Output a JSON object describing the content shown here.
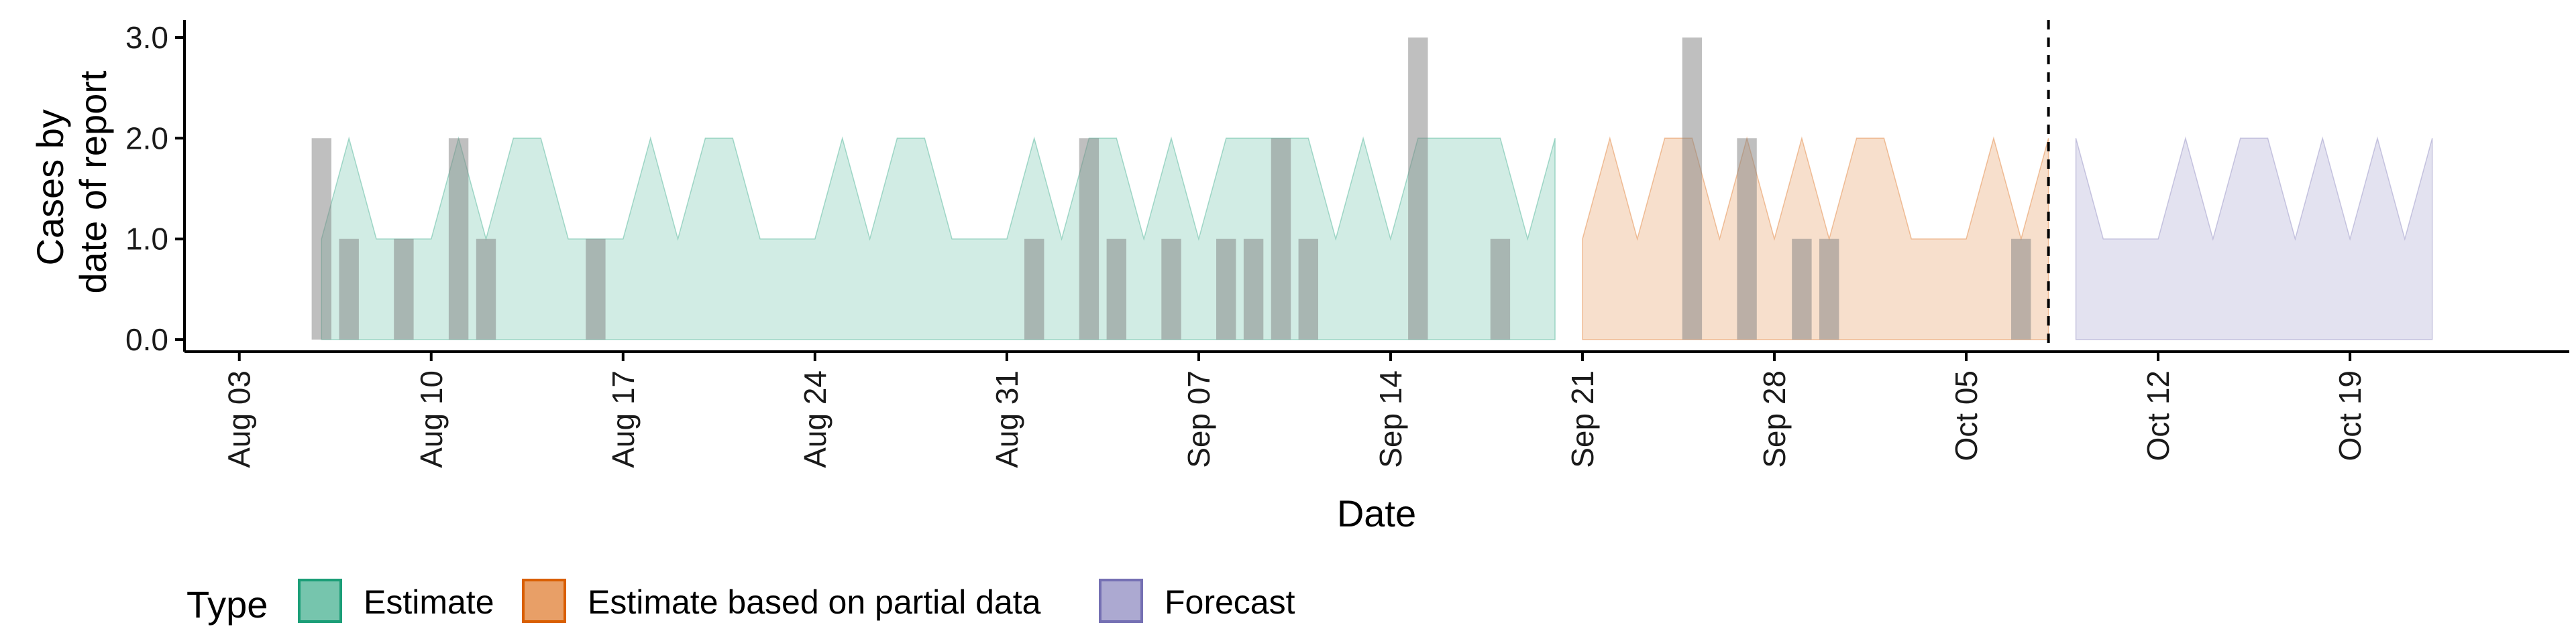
{
  "chart_data": {
    "type": "area",
    "xlabel": "Date",
    "ylabel_lines": [
      "Cases by",
      "date of report"
    ],
    "ylim": [
      0,
      3.2
    ],
    "x_range": [
      "2023-08-01",
      "2023-10-27"
    ],
    "y_ticks": [
      {
        "value": 0,
        "label": "0.0"
      },
      {
        "value": 1,
        "label": "1.0"
      },
      {
        "value": 2,
        "label": "2.0"
      },
      {
        "value": 3,
        "label": "3.0"
      }
    ],
    "x_ticks": [
      {
        "date": "2023-08-03",
        "label": "Aug 03"
      },
      {
        "date": "2023-08-10",
        "label": "Aug 10"
      },
      {
        "date": "2023-08-17",
        "label": "Aug 17"
      },
      {
        "date": "2023-08-24",
        "label": "Aug 24"
      },
      {
        "date": "2023-08-31",
        "label": "Aug 31"
      },
      {
        "date": "2023-09-07",
        "label": "Sep 07"
      },
      {
        "date": "2023-09-14",
        "label": "Sep 14"
      },
      {
        "date": "2023-09-21",
        "label": "Sep 21"
      },
      {
        "date": "2023-09-28",
        "label": "Sep 28"
      },
      {
        "date": "2023-10-05",
        "label": "Oct 05"
      },
      {
        "date": "2023-10-12",
        "label": "Oct 12"
      },
      {
        "date": "2023-10-19",
        "label": "Oct 19"
      }
    ],
    "forecast_start": "2023-10-08",
    "reported_cases": [
      {
        "date": "2023-08-06",
        "value": 2
      },
      {
        "date": "2023-08-07",
        "value": 1
      },
      {
        "date": "2023-08-09",
        "value": 1
      },
      {
        "date": "2023-08-11",
        "value": 2
      },
      {
        "date": "2023-08-12",
        "value": 1
      },
      {
        "date": "2023-08-16",
        "value": 1
      },
      {
        "date": "2023-09-01",
        "value": 1
      },
      {
        "date": "2023-09-03",
        "value": 2
      },
      {
        "date": "2023-09-04",
        "value": 1
      },
      {
        "date": "2023-09-06",
        "value": 1
      },
      {
        "date": "2023-09-08",
        "value": 1
      },
      {
        "date": "2023-09-09",
        "value": 1
      },
      {
        "date": "2023-09-10",
        "value": 2
      },
      {
        "date": "2023-09-11",
        "value": 1
      },
      {
        "date": "2023-09-15",
        "value": 3
      },
      {
        "date": "2023-09-18",
        "value": 1
      },
      {
        "date": "2023-09-25",
        "value": 3
      },
      {
        "date": "2023-09-27",
        "value": 2
      },
      {
        "date": "2023-09-29",
        "value": 1
      },
      {
        "date": "2023-09-30",
        "value": 1
      },
      {
        "date": "2023-10-07",
        "value": 1
      }
    ],
    "series": [
      {
        "name": "Estimate",
        "color": "#1b9e77",
        "lower": [
          [
            "2023-08-06",
            0
          ],
          [
            "2023-09-20",
            0
          ]
        ],
        "upper": [
          [
            "2023-08-06",
            1
          ],
          [
            "2023-08-07",
            2
          ],
          [
            "2023-08-08",
            1
          ],
          [
            "2023-08-09",
            1
          ],
          [
            "2023-08-10",
            1
          ],
          [
            "2023-08-11",
            2
          ],
          [
            "2023-08-12",
            1
          ],
          [
            "2023-08-13",
            2
          ],
          [
            "2023-08-14",
            2
          ],
          [
            "2023-08-15",
            1
          ],
          [
            "2023-08-16",
            1
          ],
          [
            "2023-08-17",
            1
          ],
          [
            "2023-08-18",
            2
          ],
          [
            "2023-08-19",
            1
          ],
          [
            "2023-08-20",
            2
          ],
          [
            "2023-08-21",
            2
          ],
          [
            "2023-08-22",
            1
          ],
          [
            "2023-08-23",
            1
          ],
          [
            "2023-08-24",
            1
          ],
          [
            "2023-08-25",
            2
          ],
          [
            "2023-08-26",
            1
          ],
          [
            "2023-08-27",
            2
          ],
          [
            "2023-08-28",
            2
          ],
          [
            "2023-08-29",
            1
          ],
          [
            "2023-08-30",
            1
          ],
          [
            "2023-08-31",
            1
          ],
          [
            "2023-09-01",
            2
          ],
          [
            "2023-09-02",
            1
          ],
          [
            "2023-09-03",
            2
          ],
          [
            "2023-09-04",
            2
          ],
          [
            "2023-09-05",
            1
          ],
          [
            "2023-09-06",
            2
          ],
          [
            "2023-09-07",
            1
          ],
          [
            "2023-09-08",
            2
          ],
          [
            "2023-09-09",
            2
          ],
          [
            "2023-09-10",
            2
          ],
          [
            "2023-09-11",
            2
          ],
          [
            "2023-09-12",
            1
          ],
          [
            "2023-09-13",
            2
          ],
          [
            "2023-09-14",
            1
          ],
          [
            "2023-09-15",
            2
          ],
          [
            "2023-09-16",
            2
          ],
          [
            "2023-09-17",
            2
          ],
          [
            "2023-09-18",
            2
          ],
          [
            "2023-09-19",
            1
          ],
          [
            "2023-09-20",
            2
          ]
        ]
      },
      {
        "name": "Estimate based on partial data",
        "color": "#d95f02",
        "lower": [
          [
            "2023-09-21",
            0
          ],
          [
            "2023-10-08",
            0
          ]
        ],
        "upper": [
          [
            "2023-09-21",
            1
          ],
          [
            "2023-09-22",
            2
          ],
          [
            "2023-09-23",
            1
          ],
          [
            "2023-09-24",
            2
          ],
          [
            "2023-09-25",
            2
          ],
          [
            "2023-09-26",
            1
          ],
          [
            "2023-09-27",
            2
          ],
          [
            "2023-09-28",
            1
          ],
          [
            "2023-09-29",
            2
          ],
          [
            "2023-09-30",
            1
          ],
          [
            "2023-10-01",
            2
          ],
          [
            "2023-10-02",
            2
          ],
          [
            "2023-10-03",
            1
          ],
          [
            "2023-10-04",
            1
          ],
          [
            "2023-10-05",
            1
          ],
          [
            "2023-10-06",
            2
          ],
          [
            "2023-10-07",
            1
          ],
          [
            "2023-10-08",
            2
          ]
        ]
      },
      {
        "name": "Forecast",
        "color": "#7570b3",
        "lower": [
          [
            "2023-10-09",
            0
          ],
          [
            "2023-10-22",
            0
          ]
        ],
        "upper": [
          [
            "2023-10-09",
            2
          ],
          [
            "2023-10-10",
            1
          ],
          [
            "2023-10-11",
            1
          ],
          [
            "2023-10-12",
            1
          ],
          [
            "2023-10-13",
            2
          ],
          [
            "2023-10-14",
            1
          ],
          [
            "2023-10-15",
            2
          ],
          [
            "2023-10-16",
            2
          ],
          [
            "2023-10-17",
            1
          ],
          [
            "2023-10-18",
            2
          ],
          [
            "2023-10-19",
            1
          ],
          [
            "2023-10-20",
            2
          ],
          [
            "2023-10-21",
            1
          ],
          [
            "2023-10-22",
            2
          ]
        ]
      }
    ],
    "legend": {
      "title": "Type",
      "placement": "bottom-left",
      "entries": [
        "Estimate",
        "Estimate based on partial data",
        "Forecast"
      ]
    }
  }
}
